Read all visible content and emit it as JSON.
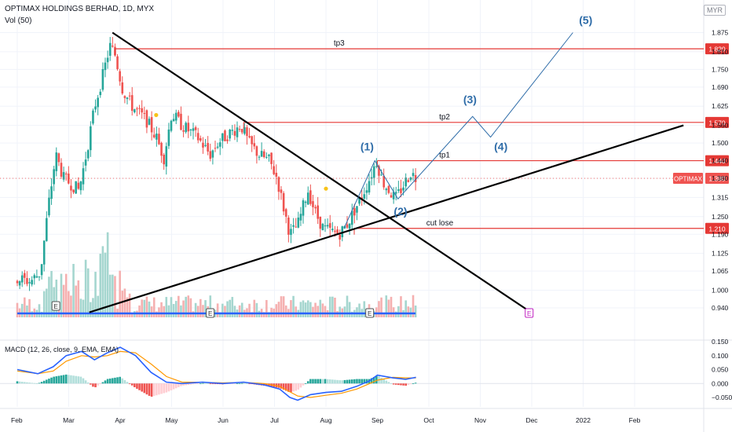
{
  "header": {
    "title": "OPTIMAX HOLDINGS BERHAD, 1D, MYX",
    "volume_label": "Vol (50)",
    "currency": "MYR"
  },
  "macd_label": "MACD (12, 26, close, 9, EMA, EMA)",
  "colors": {
    "up": "#26a69a",
    "down": "#ef5350",
    "level": "#e53935",
    "wave": "#2e6ca8",
    "ma": "#2962ff",
    "signal": "#ff9800",
    "trend": "#000000"
  },
  "chart_data": [
    {
      "type": "candlestick",
      "title": "OPTIMAX HOLDINGS BERHAD, 1D, MYX",
      "x_ticks": [
        "Feb",
        "Mar",
        "Apr",
        "May",
        "Jun",
        "Jul",
        "Aug",
        "Sep",
        "Oct",
        "Nov",
        "Dec",
        "2022",
        "Feb"
      ],
      "y_ticks": [
        "1.875",
        "1.810",
        "1.750",
        "1.690",
        "1.625",
        "1.560",
        "1.500",
        "1.440",
        "1.380",
        "1.315",
        "1.250",
        "1.190",
        "1.125",
        "1.065",
        "1.000",
        "0.940"
      ],
      "ylim": [
        0.91,
        1.905
      ],
      "price_path": [
        {
          "month": 0.0,
          "close": 1.04
        },
        {
          "month": 0.25,
          "close": 1.03
        },
        {
          "month": 0.45,
          "close": 1.06
        },
        {
          "month": 0.6,
          "close": 1.28
        },
        {
          "month": 0.75,
          "close": 1.46
        },
        {
          "month": 0.9,
          "close": 1.38
        },
        {
          "month": 1.05,
          "close": 1.36
        },
        {
          "month": 1.2,
          "close": 1.34
        },
        {
          "month": 1.35,
          "close": 1.47
        },
        {
          "month": 1.5,
          "close": 1.62
        },
        {
          "month": 1.65,
          "close": 1.72
        },
        {
          "month": 1.8,
          "close": 1.83
        },
        {
          "month": 1.9,
          "close": 1.8
        },
        {
          "month": 2.05,
          "close": 1.68
        },
        {
          "month": 2.25,
          "close": 1.62
        },
        {
          "month": 2.5,
          "close": 1.58
        },
        {
          "month": 2.7,
          "close": 1.52
        },
        {
          "month": 2.85,
          "close": 1.45
        },
        {
          "month": 3.0,
          "close": 1.6
        },
        {
          "month": 3.2,
          "close": 1.56
        },
        {
          "month": 3.5,
          "close": 1.52
        },
        {
          "month": 3.75,
          "close": 1.46
        },
        {
          "month": 3.9,
          "close": 1.5
        },
        {
          "month": 4.1,
          "close": 1.53
        },
        {
          "month": 4.35,
          "close": 1.56
        },
        {
          "month": 4.5,
          "close": 1.5
        },
        {
          "month": 4.7,
          "close": 1.46
        },
        {
          "month": 4.9,
          "close": 1.44
        },
        {
          "month": 5.05,
          "close": 1.38
        },
        {
          "month": 5.15,
          "close": 1.3
        },
        {
          "month": 5.3,
          "close": 1.19
        },
        {
          "month": 5.45,
          "close": 1.22
        },
        {
          "month": 5.55,
          "close": 1.28
        },
        {
          "month": 5.65,
          "close": 1.34
        },
        {
          "month": 5.8,
          "close": 1.26
        },
        {
          "month": 5.95,
          "close": 1.21
        },
        {
          "month": 6.1,
          "close": 1.2
        },
        {
          "month": 6.25,
          "close": 1.19
        },
        {
          "month": 6.4,
          "close": 1.22
        },
        {
          "month": 6.55,
          "close": 1.27
        },
        {
          "month": 6.7,
          "close": 1.32
        },
        {
          "month": 6.85,
          "close": 1.38
        },
        {
          "month": 6.98,
          "close": 1.44
        },
        {
          "month": 7.1,
          "close": 1.37
        },
        {
          "month": 7.22,
          "close": 1.34
        },
        {
          "month": 7.35,
          "close": 1.31
        },
        {
          "month": 7.45,
          "close": 1.34
        },
        {
          "month": 7.55,
          "close": 1.37
        },
        {
          "month": 7.65,
          "close": 1.4
        },
        {
          "month": 7.75,
          "close": 1.38
        }
      ],
      "levels": [
        {
          "label": "tp3",
          "price": 1.82,
          "tag": "1.820"
        },
        {
          "label": "tp2",
          "price": 1.57,
          "tag": "1.570"
        },
        {
          "label": "tp1",
          "price": 1.44,
          "tag": "1.440"
        },
        {
          "label": "cut lose",
          "price": 1.21,
          "tag": "1.210"
        }
      ],
      "current_price": {
        "label": "OPTIMAX",
        "tag": "1.380",
        "price": 1.38
      },
      "elliott_labels": [
        "(1)",
        "(2)",
        "(3)",
        "(4)",
        "(5)"
      ],
      "elliott_path": [
        {
          "month": 6.35,
          "price": 1.21
        },
        {
          "month": 6.95,
          "price": 1.44
        },
        {
          "month": 7.4,
          "price": 1.31
        },
        {
          "month": 8.85,
          "price": 1.59
        },
        {
          "month": 9.2,
          "price": 1.52
        },
        {
          "month": 10.8,
          "price": 1.875
        }
      ],
      "trendlines": [
        {
          "from": {
            "month": 1.85,
            "price": 1.875
          },
          "to": {
            "month": 9.9,
            "price": 0.935
          }
        },
        {
          "from": {
            "month": 1.4,
            "price": 0.925
          },
          "to": {
            "month": 12.95,
            "price": 1.56
          }
        }
      ],
      "event_markers": [
        "E",
        "E",
        "E",
        "E"
      ]
    },
    {
      "type": "bar",
      "title": "MACD (12, 26, close, 9, EMA, EMA)",
      "y_ticks": [
        "0.150",
        "0.100",
        "0.050",
        "0.000",
        "−0.050"
      ],
      "ylim": [
        -0.075,
        0.155
      ],
      "series": [
        {
          "name": "MACD",
          "points": [
            {
              "month": 0.0,
              "value": 0.05
            },
            {
              "month": 0.4,
              "value": 0.035
            },
            {
              "month": 0.7,
              "value": 0.06
            },
            {
              "month": 0.95,
              "value": 0.1
            },
            {
              "month": 1.25,
              "value": 0.115
            },
            {
              "month": 1.5,
              "value": 0.085
            },
            {
              "month": 1.75,
              "value": 0.11
            },
            {
              "month": 2.0,
              "value": 0.13
            },
            {
              "month": 2.3,
              "value": 0.1
            },
            {
              "month": 2.6,
              "value": 0.04
            },
            {
              "month": 2.9,
              "value": 0.005
            },
            {
              "month": 3.2,
              "value": 0.0
            },
            {
              "month": 3.6,
              "value": 0.005
            },
            {
              "month": 4.0,
              "value": 0.0
            },
            {
              "month": 4.4,
              "value": 0.005
            },
            {
              "month": 4.8,
              "value": -0.005
            },
            {
              "month": 5.1,
              "value": -0.02
            },
            {
              "month": 5.3,
              "value": -0.05
            },
            {
              "month": 5.45,
              "value": -0.06
            },
            {
              "month": 5.7,
              "value": -0.04
            },
            {
              "month": 6.0,
              "value": -0.032
            },
            {
              "month": 6.3,
              "value": -0.028
            },
            {
              "month": 6.6,
              "value": -0.01
            },
            {
              "month": 6.85,
              "value": 0.01
            },
            {
              "month": 7.0,
              "value": 0.03
            },
            {
              "month": 7.3,
              "value": 0.02
            },
            {
              "month": 7.55,
              "value": 0.015
            },
            {
              "month": 7.75,
              "value": 0.022
            }
          ]
        },
        {
          "name": "Signal",
          "points": [
            {
              "month": 0.0,
              "value": 0.045
            },
            {
              "month": 0.4,
              "value": 0.035
            },
            {
              "month": 0.7,
              "value": 0.045
            },
            {
              "month": 0.95,
              "value": 0.08
            },
            {
              "month": 1.25,
              "value": 0.1
            },
            {
              "month": 1.5,
              "value": 0.095
            },
            {
              "month": 1.75,
              "value": 0.1
            },
            {
              "month": 2.0,
              "value": 0.115
            },
            {
              "month": 2.3,
              "value": 0.11
            },
            {
              "month": 2.6,
              "value": 0.07
            },
            {
              "month": 2.9,
              "value": 0.025
            },
            {
              "month": 3.2,
              "value": 0.005
            },
            {
              "month": 3.6,
              "value": 0.004
            },
            {
              "month": 4.0,
              "value": 0.002
            },
            {
              "month": 4.4,
              "value": 0.004
            },
            {
              "month": 4.8,
              "value": 0.0
            },
            {
              "month": 5.1,
              "value": -0.01
            },
            {
              "month": 5.3,
              "value": -0.03
            },
            {
              "month": 5.45,
              "value": -0.045
            },
            {
              "month": 5.7,
              "value": -0.05
            },
            {
              "month": 6.0,
              "value": -0.042
            },
            {
              "month": 6.3,
              "value": -0.035
            },
            {
              "month": 6.6,
              "value": -0.02
            },
            {
              "month": 6.85,
              "value": 0.0
            },
            {
              "month": 7.0,
              "value": 0.012
            },
            {
              "month": 7.3,
              "value": 0.022
            },
            {
              "month": 7.55,
              "value": 0.02
            },
            {
              "month": 7.75,
              "value": 0.02
            }
          ]
        }
      ]
    }
  ]
}
